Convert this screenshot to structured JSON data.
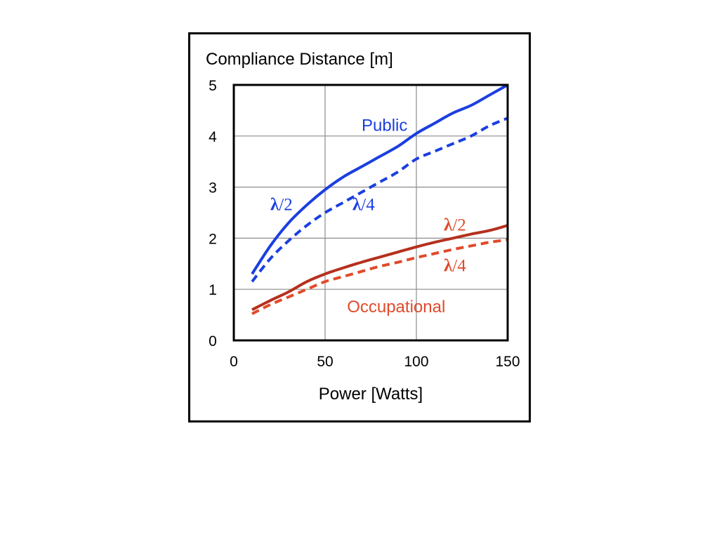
{
  "chart_data": {
    "type": "line",
    "title": "",
    "ylabel": "Compliance Distance [m]",
    "xlabel": "Power [Watts]",
    "xlim": [
      0,
      150
    ],
    "ylim": [
      0,
      5
    ],
    "x_ticks": [
      "0",
      "50",
      "100",
      "150"
    ],
    "y_ticks": [
      "0",
      "1",
      "2",
      "3",
      "4",
      "5"
    ],
    "grid": true,
    "series": [
      {
        "name": "λ/2",
        "group": "Public",
        "style": "solid",
        "color": "#1a3fe0",
        "x": [
          10,
          20,
          30,
          40,
          50,
          60,
          70,
          80,
          90,
          100,
          110,
          120,
          130,
          140,
          150
        ],
        "y": [
          1.3,
          1.85,
          2.3,
          2.65,
          2.95,
          3.2,
          3.4,
          3.6,
          3.8,
          4.05,
          4.25,
          4.45,
          4.6,
          4.8,
          5.0
        ]
      },
      {
        "name": "λ/4",
        "group": "Public",
        "style": "dashed",
        "color": "#1a3fe0",
        "x": [
          10,
          20,
          30,
          40,
          50,
          60,
          70,
          80,
          90,
          100,
          110,
          120,
          130,
          140,
          150
        ],
        "y": [
          1.15,
          1.6,
          1.95,
          2.25,
          2.5,
          2.7,
          2.9,
          3.1,
          3.3,
          3.55,
          3.7,
          3.85,
          4.0,
          4.2,
          4.35
        ]
      },
      {
        "name": "λ/2",
        "group": "Occupational",
        "style": "solid",
        "color": "#b5301e",
        "x": [
          10,
          20,
          30,
          40,
          50,
          60,
          70,
          80,
          90,
          100,
          110,
          120,
          130,
          140,
          150
        ],
        "y": [
          0.6,
          0.78,
          0.95,
          1.15,
          1.3,
          1.42,
          1.53,
          1.63,
          1.73,
          1.83,
          1.92,
          2.0,
          2.08,
          2.15,
          2.25
        ]
      },
      {
        "name": "λ/4",
        "group": "Occupational",
        "style": "dashed",
        "color": "#e04a2b",
        "x": [
          10,
          20,
          30,
          40,
          50,
          60,
          70,
          80,
          90,
          100,
          110,
          120,
          130,
          140,
          150
        ],
        "y": [
          0.52,
          0.7,
          0.85,
          1.0,
          1.15,
          1.25,
          1.35,
          1.45,
          1.53,
          1.62,
          1.7,
          1.78,
          1.85,
          1.92,
          1.97
        ]
      }
    ],
    "annotations": [
      {
        "text": "Public",
        "color": "#1a3fe0",
        "x": 70,
        "y": 4.1
      },
      {
        "text": "λ/2",
        "color": "#1a3fe0",
        "x": 20,
        "y": 2.55
      },
      {
        "text": "λ/4",
        "color": "#1a3fe0",
        "x": 65,
        "y": 2.55
      },
      {
        "text": "λ/2",
        "color": "#e04a2b",
        "x": 115,
        "y": 2.15
      },
      {
        "text": "λ/4",
        "color": "#e04a2b",
        "x": 115,
        "y": 1.35
      },
      {
        "text": "Occupational",
        "color": "#e04a2b",
        "x": 62,
        "y": 0.55
      }
    ]
  }
}
